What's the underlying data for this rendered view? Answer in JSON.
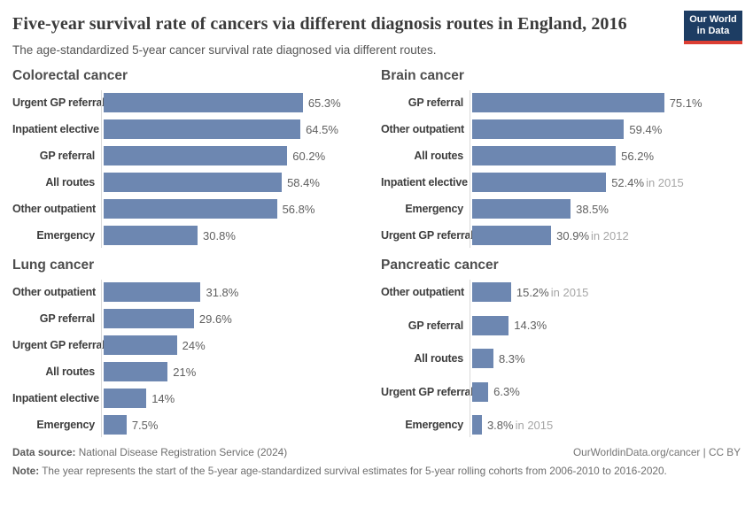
{
  "header": {
    "title": "Five-year survival rate of cancers via different diagnosis routes in England, 2016",
    "subtitle": "The age-standardized 5-year cancer survival rate diagnosed via different routes.",
    "logo": {
      "line1": "Our World",
      "line2": "in Data"
    }
  },
  "colors": {
    "bar": "#6d87b1",
    "logo_navy": "#1d3d63",
    "logo_red": "#dc3e33",
    "axis_line": "#d9d9d9"
  },
  "chart_data": [
    {
      "type": "bar",
      "title": "Colorectal cancer",
      "unit": "%",
      "xlim": [
        0,
        88
      ],
      "grid": false,
      "categories": [
        "Urgent GP referral",
        "Inpatient elective",
        "GP referral",
        "All routes",
        "Other outpatient",
        "Emergency"
      ],
      "values": [
        65.3,
        64.5,
        60.2,
        58.4,
        56.8,
        30.8
      ],
      "value_labels": [
        "65.3%",
        "64.5%",
        "60.2%",
        "58.4%",
        "56.8%",
        "30.8%"
      ],
      "suffixes": [
        "",
        "",
        "",
        "",
        "",
        ""
      ]
    },
    {
      "type": "bar",
      "title": "Brain cancer",
      "unit": "%",
      "xlim": [
        0,
        105
      ],
      "grid": false,
      "categories": [
        "GP referral",
        "Other outpatient",
        "All routes",
        "Inpatient elective",
        "Emergency",
        "Urgent GP referral"
      ],
      "values": [
        75.1,
        59.4,
        56.2,
        52.4,
        38.5,
        30.9
      ],
      "value_labels": [
        "75.1%",
        "59.4%",
        "56.2%",
        "52.4%",
        "38.5%",
        "30.9%"
      ],
      "suffixes": [
        "",
        "",
        "",
        "in 2015",
        "",
        "in 2012"
      ]
    },
    {
      "type": "bar",
      "title": "Lung cancer",
      "unit": "%",
      "xlim": [
        0,
        88
      ],
      "grid": false,
      "categories": [
        "Other outpatient",
        "GP referral",
        "Urgent GP referral",
        "All routes",
        "Inpatient elective",
        "Emergency"
      ],
      "values": [
        31.8,
        29.6,
        24,
        21,
        14,
        7.5
      ],
      "value_labels": [
        "31.8%",
        "29.6%",
        "24%",
        "21%",
        "14%",
        "7.5%"
      ],
      "suffixes": [
        "",
        "",
        "",
        "",
        "",
        ""
      ]
    },
    {
      "type": "bar",
      "title": "Pancreatic cancer",
      "unit": "%",
      "xlim": [
        0,
        105
      ],
      "grid": false,
      "categories": [
        "Other outpatient",
        "GP referral",
        "All routes",
        "Urgent GP referral",
        "Emergency"
      ],
      "values": [
        15.2,
        14.3,
        8.3,
        6.3,
        3.8
      ],
      "value_labels": [
        "15.2%",
        "14.3%",
        "8.3%",
        "6.3%",
        "3.8%"
      ],
      "suffixes": [
        "in 2015",
        "",
        "",
        "",
        "in 2015"
      ]
    }
  ],
  "footer": {
    "source_label": "Data source:",
    "source_text": " National Disease Registration Service (2024)",
    "link_text": "OurWorldinData.org/cancer | CC BY",
    "note_label": "Note:",
    "note_text": " The year represents the start of the 5-year age-standardized survival estimates for 5-year rolling cohorts from 2006-2010 to 2016-2020."
  }
}
